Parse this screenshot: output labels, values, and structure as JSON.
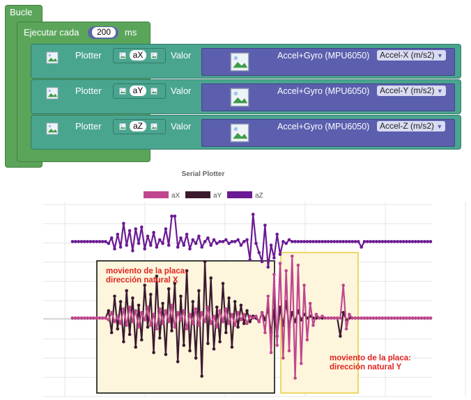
{
  "blocks": {
    "loop_label": "Bucle",
    "timer": {
      "label": "Ejecutar cada",
      "value": "200",
      "unit": "ms"
    },
    "plotters": [
      {
        "label": "Plotter",
        "var": "aX",
        "value_label": "Valor",
        "sensor": "Accel+Gyro (MPU6050)",
        "measure": "Accel-X (m/s2)"
      },
      {
        "label": "Plotter",
        "var": "aY",
        "value_label": "Valor",
        "sensor": "Accel+Gyro (MPU6050)",
        "measure": "Accel-Y (m/s2)"
      },
      {
        "label": "Plotter",
        "var": "aZ",
        "value_label": "Valor",
        "sensor": "Accel+Gyro (MPU6050)",
        "measure": "Accel-Z (m/s2)"
      }
    ],
    "dropdown_arrow": "▼"
  },
  "plotter": {
    "title": "Serial Plotter",
    "legend": [
      {
        "name": "aX",
        "color": "#c0468e"
      },
      {
        "name": "aY",
        "color": "#3b1a2e"
      },
      {
        "name": "aZ",
        "color": "#6b1b94"
      }
    ],
    "annotations": [
      {
        "line1": "moviento de la placa:",
        "line2": "dirección natural X"
      },
      {
        "line1": "moviento de la placa:",
        "line2": "dirección natural Y"
      }
    ],
    "colors": {
      "box_x_border": "#000000",
      "box_y_border": "#e8cc3a",
      "box_fill": "#fdf5dc",
      "note": "#e0241f"
    }
  },
  "chart_data": {
    "type": "line",
    "title": "Serial Plotter",
    "xlabel": "",
    "ylabel": "",
    "grid": true,
    "legend_placement": "top",
    "x": [
      0,
      1,
      2,
      3,
      4,
      5,
      6,
      7,
      8,
      9,
      10,
      11,
      12,
      13,
      14,
      15,
      16,
      17,
      18,
      19,
      20,
      21,
      22,
      23,
      24,
      25,
      26,
      27,
      28,
      29,
      30,
      31,
      32,
      33,
      34,
      35,
      36,
      37,
      38,
      39,
      40,
      41,
      42,
      43,
      44,
      45,
      46,
      47,
      48,
      49,
      50,
      51,
      52,
      53,
      54,
      55,
      56,
      57,
      58,
      59,
      60,
      61,
      62,
      63,
      64,
      65,
      66,
      67,
      68,
      69,
      70,
      71,
      72,
      73,
      74,
      75,
      76,
      77,
      78,
      79,
      80,
      81,
      82,
      83,
      84,
      85,
      86,
      87,
      88,
      89,
      90,
      91,
      92,
      93,
      94,
      95,
      96,
      97,
      98,
      99,
      100,
      101,
      102,
      103,
      104,
      105,
      106,
      107,
      108,
      109,
      110,
      111,
      112,
      113,
      114,
      115,
      116,
      117,
      118,
      119
    ],
    "series": [
      {
        "name": "aX",
        "values": [
          0,
          0,
          0,
          0,
          0,
          0,
          0,
          0,
          0,
          0,
          0,
          0,
          -0.1,
          0.3,
          -0.2,
          0.1,
          -0.3,
          0.5,
          -0.4,
          0.6,
          -0.2,
          0.4,
          -0.5,
          0.3,
          -0.1,
          0.6,
          -0.4,
          0.2,
          -0.6,
          0.5,
          -0.3,
          0.4,
          -0.2,
          0.7,
          -0.5,
          0.3,
          -0.1,
          0.4,
          -0.6,
          0.2,
          -0.3,
          0.5,
          -0.4,
          0.3,
          -0.2,
          0.6,
          -0.3,
          0.1,
          -0.5,
          0.4,
          -0.2,
          0.5,
          -0.3,
          0.2,
          -0.4,
          0.3,
          -0.1,
          0.2,
          -0.3,
          0.1,
          0,
          0.1,
          -0.2,
          0.3,
          -0.8,
          1.2,
          -1.9,
          2.4,
          -1.5,
          3.0,
          -2.2,
          2.6,
          -1.8,
          3.4,
          -3.3,
          2.9,
          -2.5,
          1.8,
          -1.2,
          0.8,
          -0.4,
          0.2,
          0,
          0.1,
          0,
          0,
          0,
          0,
          0,
          0,
          1.8,
          -0.6,
          0.2,
          0,
          0,
          0,
          0,
          0,
          0,
          0,
          0,
          0,
          0,
          0,
          0,
          0,
          0,
          0,
          0,
          0,
          0,
          0,
          0,
          0,
          0,
          0,
          0,
          0,
          0,
          0
        ]
      },
      {
        "name": "aY",
        "values": [
          0,
          0,
          0,
          0,
          0,
          0,
          0,
          0,
          0,
          0,
          0,
          0,
          0.4,
          -0.8,
          1.2,
          -0.6,
          0.9,
          -1.3,
          1.5,
          -0.9,
          1.1,
          -1.6,
          0.7,
          -1.2,
          1.8,
          -0.5,
          1.3,
          -1.9,
          2.3,
          -1.1,
          0.8,
          -2.0,
          1.6,
          -0.7,
          1.9,
          -2.4,
          1.2,
          -1.5,
          2.6,
          -1.8,
          0.9,
          -2.2,
          1.5,
          -3.2,
          3.1,
          -1.4,
          2.2,
          -1.7,
          0.6,
          -1.3,
          1.9,
          -0.8,
          1.1,
          -1.6,
          0.9,
          -0.5,
          0.7,
          -0.3,
          0.4,
          -0.2,
          0.1,
          0,
          -0.2,
          0.3,
          -0.1,
          0.5,
          -0.8,
          0.4,
          -1.0,
          0.6,
          -0.4,
          0.9,
          -0.5,
          0.3,
          -0.2,
          0.4,
          -0.1,
          0.2,
          0,
          0.1,
          0,
          0,
          0,
          0,
          0,
          0,
          0,
          0,
          0,
          -1.0,
          0.3,
          -0.1,
          0,
          0,
          0,
          0,
          0,
          0,
          0,
          0,
          0,
          0,
          0,
          0,
          0,
          0,
          0,
          0,
          0,
          0,
          0,
          0,
          0,
          0,
          0,
          0,
          0,
          0,
          0,
          0
        ]
      },
      {
        "name": "aZ",
        "values": [
          4.2,
          4.2,
          4.2,
          4.2,
          4.2,
          4.2,
          4.2,
          4.2,
          4.2,
          4.2,
          4.2,
          4.2,
          4.1,
          4.4,
          3.8,
          4.6,
          3.9,
          5.2,
          4.0,
          4.8,
          3.7,
          4.9,
          4.1,
          5.0,
          3.8,
          4.5,
          4.0,
          4.7,
          3.9,
          4.3,
          4.1,
          4.9,
          4.0,
          5.6,
          5.6,
          3.9,
          4.4,
          4.0,
          4.6,
          3.8,
          4.3,
          4.1,
          4.5,
          3.9,
          4.2,
          4.4,
          4.0,
          4.3,
          4.1,
          4.2,
          4.2,
          4.3,
          4.1,
          4.2,
          4.2,
          4.3,
          4.0,
          4.2,
          4.3,
          3.2,
          5.7,
          4.1,
          3.6,
          3.1,
          5.1,
          2.8,
          4.0,
          3.3,
          4.6,
          3.5,
          4.2,
          4.1,
          4.3,
          4.2,
          4.2,
          4.2,
          4.2,
          4.2,
          4.2,
          4.2,
          4.2,
          4.2,
          4.2,
          4.2,
          4.2,
          4.2,
          4.2,
          4.2,
          4.2,
          4.2,
          4.2,
          4.2,
          4.2,
          4.2,
          4.2,
          4.2,
          3.9,
          4.2,
          4.2,
          4.2,
          4.2,
          4.2,
          4.2,
          4.2,
          4.2,
          4.2,
          4.2,
          4.2,
          4.2,
          4.2,
          4.2,
          4.2,
          4.2,
          4.2,
          4.2,
          4.2,
          4.2,
          4.2,
          4.2,
          4.2
        ]
      }
    ]
  }
}
